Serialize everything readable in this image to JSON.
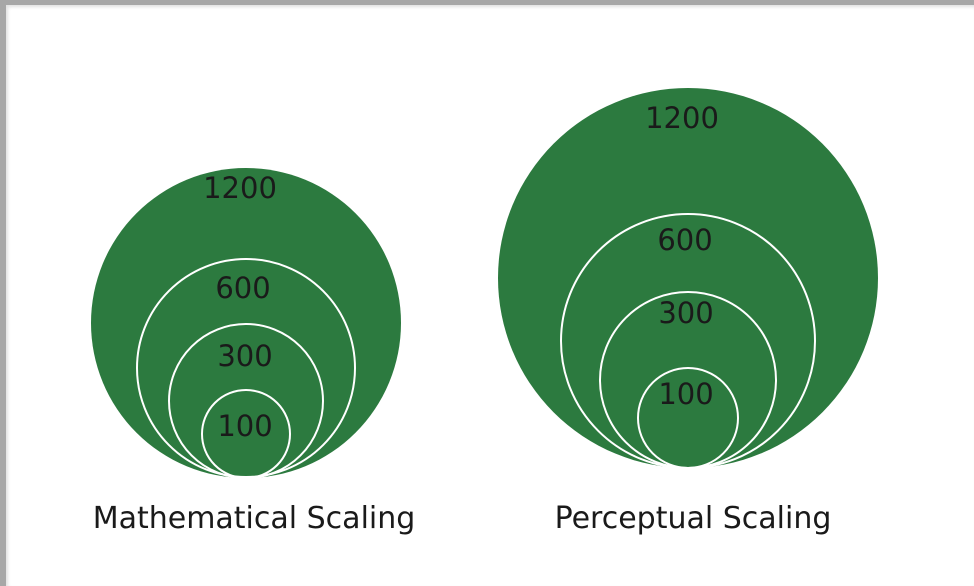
{
  "colors": {
    "circle_fill": "#2c7a3f",
    "circle_outline": "#ffffff"
  },
  "diagrams": [
    {
      "caption": "Mathematical Scaling",
      "circles": [
        {
          "label": "1200",
          "value": 1200
        },
        {
          "label": "600",
          "value": 600
        },
        {
          "label": "300",
          "value": 300
        },
        {
          "label": "100",
          "value": 100
        }
      ]
    },
    {
      "caption": "Perceptual Scaling",
      "circles": [
        {
          "label": "1200",
          "value": 1200
        },
        {
          "label": "600",
          "value": 600
        },
        {
          "label": "300",
          "value": 300
        },
        {
          "label": "100",
          "value": 100
        }
      ]
    }
  ]
}
